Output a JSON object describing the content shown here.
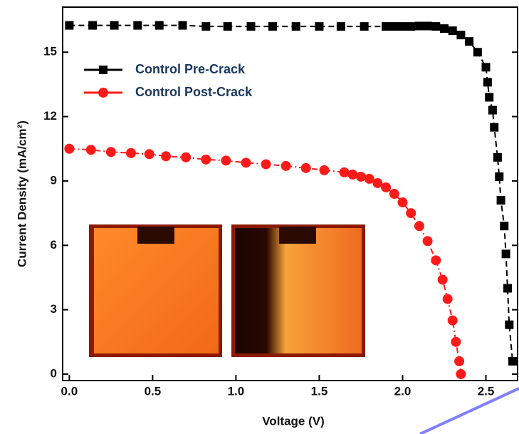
{
  "chart_data": {
    "type": "line",
    "x_label": "Voltage (V)",
    "y_label": "Current Density (mA/cm²)",
    "xlim": [
      -0.04,
      2.69
    ],
    "ylim": [
      -0.3,
      17.1
    ],
    "xticks": [
      {
        "value": 0,
        "label": "0.0"
      },
      0.5,
      {
        "value": 1,
        "label": "1.0"
      },
      1.5,
      {
        "value": 2,
        "label": "2.0"
      },
      2.5
    ],
    "yticks": [
      0,
      3,
      6,
      9,
      12,
      15
    ],
    "legend": "upper-left",
    "series": [
      {
        "name": "Control Pre-Crack",
        "color": "#000000",
        "marker": "square",
        "x": [
          0,
          0.14,
          0.27,
          0.41,
          0.54,
          0.68,
          0.82,
          0.95,
          1.09,
          1.22,
          1.36,
          1.5,
          1.63,
          1.77,
          1.9,
          1.95,
          2.0,
          2.05,
          2.1,
          2.15,
          2.2,
          2.25,
          2.3,
          2.35,
          2.4,
          2.45,
          2.5,
          2.51,
          2.52,
          2.54,
          2.55,
          2.57,
          2.58,
          2.59,
          2.61,
          2.62,
          2.63,
          2.64,
          2.66
        ],
        "values": [
          16.25,
          16.25,
          16.25,
          16.25,
          16.25,
          16.25,
          16.2,
          16.2,
          16.2,
          16.2,
          16.2,
          16.2,
          16.2,
          16.2,
          16.2,
          16.2,
          16.2,
          16.2,
          16.22,
          16.22,
          16.2,
          16.1,
          16.0,
          15.8,
          15.5,
          15.0,
          14.3,
          13.6,
          12.9,
          12.3,
          11.5,
          10.1,
          9.2,
          8.1,
          6.9,
          5.6,
          4.0,
          2.3,
          0.6
        ]
      },
      {
        "name": "Control Post-Crack",
        "color": "#ff1a1a",
        "marker": "circle",
        "x": [
          0,
          0.13,
          0.25,
          0.37,
          0.48,
          0.58,
          0.7,
          0.82,
          0.94,
          1.06,
          1.18,
          1.3,
          1.42,
          1.53,
          1.65,
          1.7,
          1.75,
          1.8,
          1.85,
          1.9,
          1.95,
          2.0,
          2.05,
          2.1,
          2.15,
          2.2,
          2.24,
          2.27,
          2.3,
          2.32,
          2.34,
          2.35
        ],
        "values": [
          10.5,
          10.45,
          10.35,
          10.3,
          10.25,
          10.15,
          10.1,
          10.0,
          9.95,
          9.85,
          9.78,
          9.7,
          9.6,
          9.5,
          9.4,
          9.3,
          9.2,
          9.1,
          8.9,
          8.7,
          8.4,
          8.0,
          7.5,
          6.9,
          6.2,
          5.3,
          4.4,
          3.5,
          2.5,
          1.5,
          0.6,
          0
        ]
      }
    ]
  }
}
